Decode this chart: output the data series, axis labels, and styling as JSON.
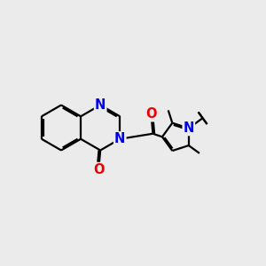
{
  "background_color": "#ebebeb",
  "bond_color": "#000000",
  "N_color": "#0000ee",
  "O_color": "#ee0000",
  "line_width": 1.6,
  "font_size": 10.5,
  "fig_size": [
    3.0,
    3.0
  ],
  "dpi": 100,
  "xlim": [
    0,
    10
  ],
  "ylim": [
    0,
    10
  ]
}
